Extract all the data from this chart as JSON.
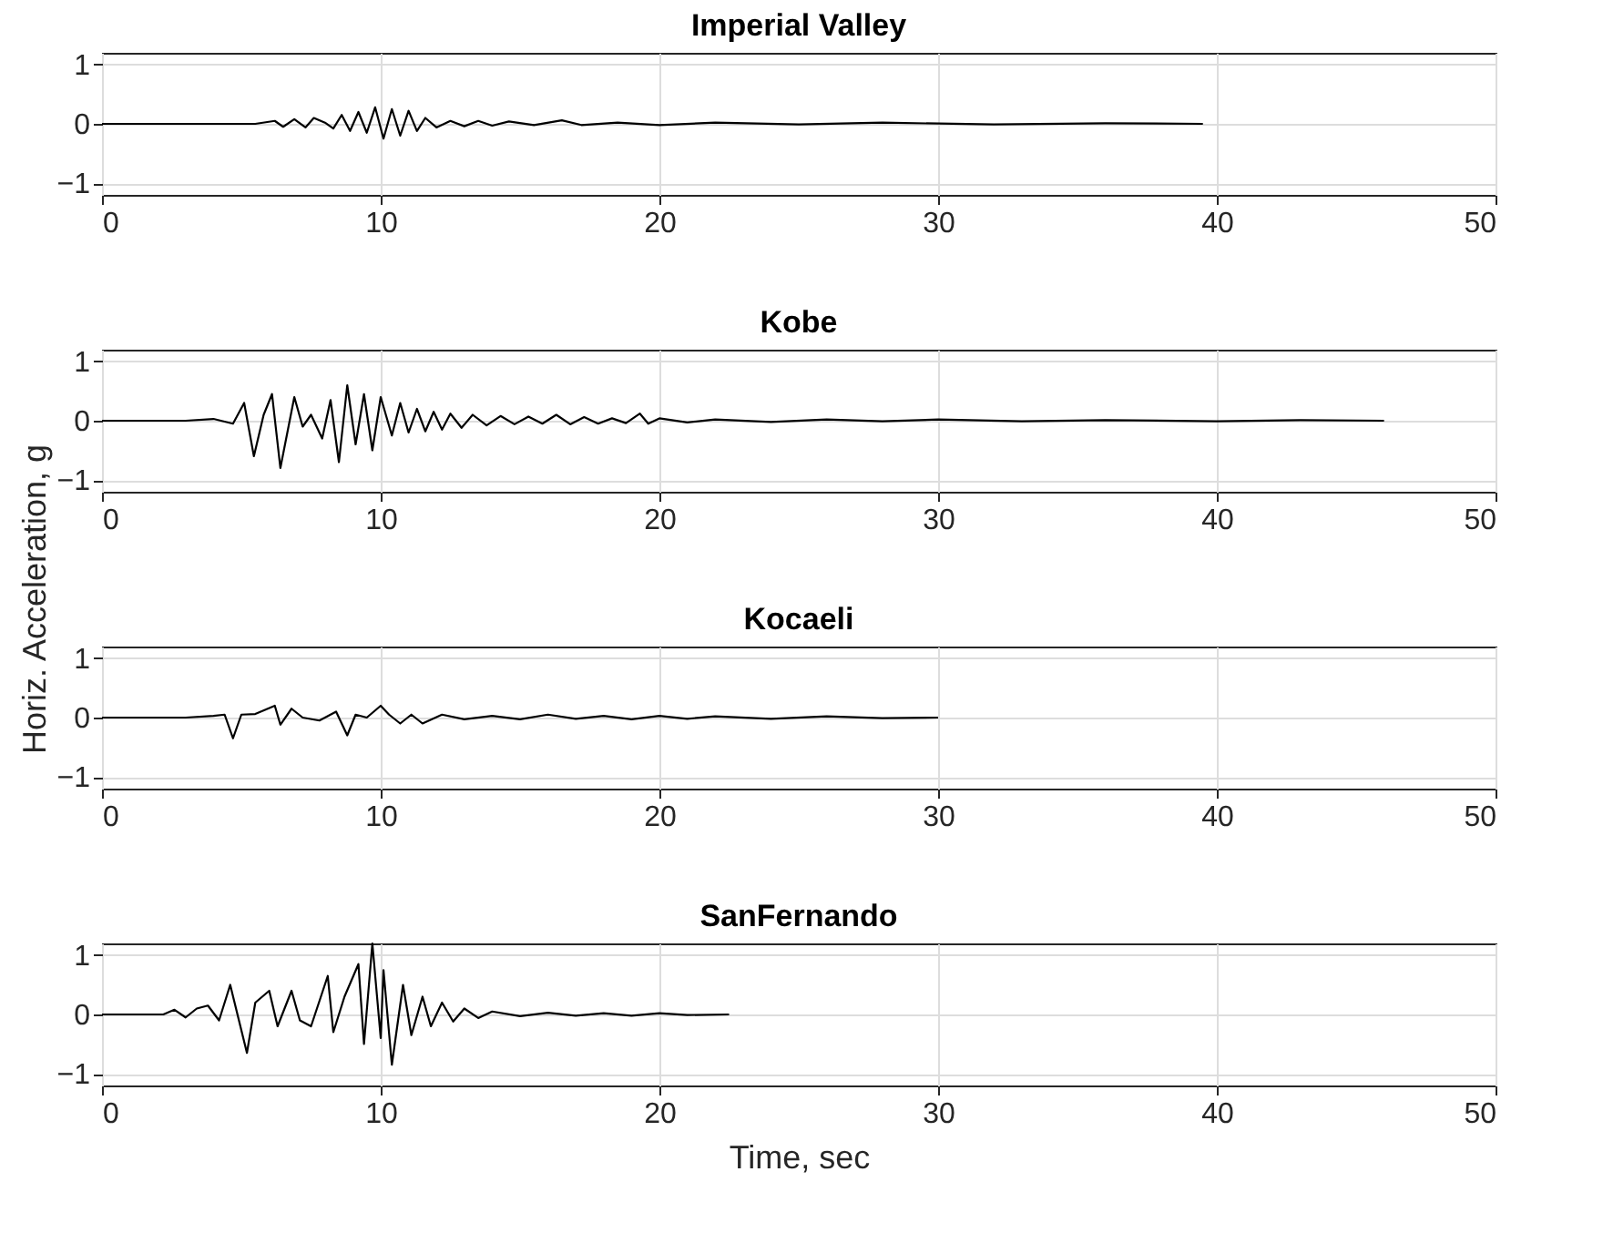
{
  "chart_data": [
    {
      "type": "line",
      "title": "Imperial Valley",
      "xlim": [
        0,
        50
      ],
      "xticks": [
        0,
        10,
        20,
        30,
        40,
        50
      ],
      "ylim": [
        -1.2,
        1.2
      ],
      "yticks": [
        -1,
        0,
        1
      ],
      "grid": true,
      "line_style": "solid",
      "marker": "none",
      "series": [
        {
          "color": "#000000",
          "x": [
            0,
            5.5,
            6.2,
            6.5,
            6.9,
            7.3,
            7.6,
            8,
            8.3,
            8.6,
            8.9,
            9.2,
            9.5,
            9.8,
            10.1,
            10.4,
            10.7,
            11,
            11.3,
            11.6,
            12,
            12.5,
            13,
            13.5,
            14,
            14.6,
            15.5,
            16.5,
            17.2,
            18.5,
            20,
            22,
            25,
            28,
            32,
            36,
            39.5
          ],
          "values": [
            0,
            0,
            0.05,
            -0.05,
            0.08,
            -0.06,
            0.1,
            0.02,
            -0.08,
            0.15,
            -0.12,
            0.2,
            -0.15,
            0.28,
            -0.25,
            0.25,
            -0.2,
            0.22,
            -0.12,
            0.1,
            -0.06,
            0.05,
            -0.04,
            0.05,
            -0.03,
            0.04,
            -0.02,
            0.06,
            -0.02,
            0.02,
            -0.02,
            0.02,
            -0.01,
            0.02,
            -0.01,
            0.01,
            0
          ]
        }
      ]
    },
    {
      "type": "line",
      "title": "Kobe",
      "ylabel": "Horiz. Acceleration, g",
      "xlim": [
        0,
        50
      ],
      "xticks": [
        0,
        10,
        20,
        30,
        40,
        50
      ],
      "ylim": [
        -1.2,
        1.2
      ],
      "yticks": [
        -1,
        0,
        1
      ],
      "grid": true,
      "line_style": "solid",
      "marker": "none",
      "series": [
        {
          "color": "#000000",
          "x": [
            0,
            3,
            4,
            4.7,
            5.1,
            5.45,
            5.8,
            6.1,
            6.4,
            6.9,
            7.2,
            7.5,
            7.9,
            8.2,
            8.5,
            8.8,
            9.1,
            9.4,
            9.7,
            10,
            10.4,
            10.7,
            11,
            11.3,
            11.6,
            11.9,
            12.2,
            12.5,
            12.9,
            13.3,
            13.8,
            14.3,
            14.8,
            15.3,
            15.8,
            16.3,
            16.8,
            17.3,
            17.8,
            18.3,
            18.8,
            19.3,
            19.6,
            20,
            21,
            22,
            24,
            26,
            28,
            30,
            33,
            36,
            40,
            43,
            46
          ],
          "values": [
            0,
            0,
            0.03,
            -0.05,
            0.3,
            -0.6,
            0.1,
            0.45,
            -0.8,
            0.4,
            -0.1,
            0.1,
            -0.3,
            0.35,
            -0.7,
            0.6,
            -0.4,
            0.45,
            -0.5,
            0.4,
            -0.25,
            0.3,
            -0.2,
            0.2,
            -0.18,
            0.15,
            -0.15,
            0.12,
            -0.12,
            0.1,
            -0.08,
            0.08,
            -0.06,
            0.07,
            -0.05,
            0.1,
            -0.06,
            0.06,
            -0.05,
            0.04,
            -0.04,
            0.12,
            -0.05,
            0.04,
            -0.03,
            0.02,
            -0.02,
            0.02,
            -0.01,
            0.02,
            -0.01,
            0.01,
            -0.01,
            0.01,
            0
          ]
        }
      ]
    },
    {
      "type": "line",
      "title": "Kocaeli",
      "xlim": [
        0,
        50
      ],
      "xticks": [
        0,
        10,
        20,
        30,
        40,
        50
      ],
      "ylim": [
        -1.2,
        1.2
      ],
      "yticks": [
        -1,
        0,
        1
      ],
      "grid": true,
      "line_style": "solid",
      "marker": "none",
      "series": [
        {
          "color": "#000000",
          "x": [
            0,
            3,
            4,
            4.4,
            4.7,
            5,
            5.5,
            6.2,
            6.4,
            6.8,
            7.2,
            7.8,
            8.4,
            8.8,
            9.1,
            9.5,
            10,
            10.3,
            10.7,
            11.1,
            11.5,
            12.2,
            13,
            14,
            15,
            16,
            17,
            18,
            19,
            20,
            21,
            22,
            24,
            26,
            28,
            30
          ],
          "values": [
            0,
            0,
            0.03,
            0.05,
            -0.35,
            0.05,
            0.06,
            0.2,
            -0.12,
            0.15,
            0,
            -0.05,
            0.1,
            -0.3,
            0.05,
            0,
            0.2,
            0.05,
            -0.1,
            0.05,
            -0.1,
            0.05,
            -0.03,
            0.03,
            -0.03,
            0.05,
            -0.02,
            0.03,
            -0.03,
            0.03,
            -0.02,
            0.02,
            -0.02,
            0.02,
            -0.01,
            0
          ]
        }
      ]
    },
    {
      "type": "line",
      "title": "SanFernando",
      "xlabel": "Time, sec",
      "xlim": [
        0,
        50
      ],
      "xticks": [
        0,
        10,
        20,
        30,
        40,
        50
      ],
      "ylim": [
        -1.2,
        1.2
      ],
      "yticks": [
        -1,
        0,
        1
      ],
      "grid": true,
      "line_style": "solid",
      "marker": "none",
      "series": [
        {
          "color": "#000000",
          "x": [
            0,
            2.2,
            2.6,
            3,
            3.4,
            3.8,
            4.2,
            4.6,
            5.2,
            5.5,
            6,
            6.3,
            6.8,
            7.1,
            7.5,
            8.1,
            8.3,
            8.7,
            9.2,
            9.4,
            9.7,
            10,
            10.1,
            10.4,
            10.8,
            11.1,
            11.5,
            11.8,
            12.2,
            12.6,
            13,
            13.5,
            14,
            15,
            16,
            17,
            18,
            19,
            20,
            21,
            22.5
          ],
          "values": [
            0,
            0,
            0.08,
            -0.05,
            0.1,
            0.15,
            -0.1,
            0.5,
            -0.65,
            0.2,
            0.4,
            -0.2,
            0.4,
            -0.1,
            -0.2,
            0.65,
            -0.3,
            0.3,
            0.85,
            -0.5,
            1.2,
            -0.4,
            0.75,
            -0.85,
            0.5,
            -0.35,
            0.3,
            -0.2,
            0.2,
            -0.12,
            0.1,
            -0.06,
            0.05,
            -0.03,
            0.03,
            -0.02,
            0.02,
            -0.02,
            0.02,
            -0.01,
            0
          ]
        }
      ]
    }
  ]
}
